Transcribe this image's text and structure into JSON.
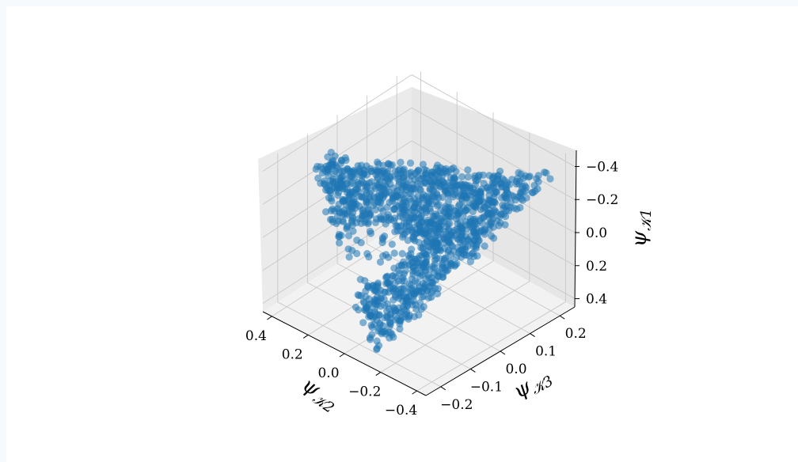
{
  "chart_data": {
    "type": "scatter",
    "projection": "3d",
    "title": "",
    "grid": true,
    "marker_color": "#1f77b4",
    "marker_alpha": 0.55,
    "axes": {
      "x": {
        "label": "ψ𝒦2",
        "label_main": "ψ",
        "label_sub": "𝒦2",
        "range": [
          -0.45,
          0.45
        ],
        "ticks": [
          0.4,
          0.2,
          0.0,
          -0.2,
          -0.4
        ],
        "tick_labels": [
          "0.4",
          "0.2",
          "0.0",
          "−0.2",
          "−0.4"
        ]
      },
      "y": {
        "label": "ψ𝒦3",
        "label_main": "ψ",
        "label_sub": "𝒦3",
        "range": [
          -0.25,
          0.25
        ],
        "ticks": [
          -0.2,
          -0.1,
          0.0,
          0.1,
          0.2
        ],
        "tick_labels": [
          "−0.2",
          "−0.1",
          "0.0",
          "0.1",
          "0.2"
        ]
      },
      "z": {
        "label": "ψ𝒦1",
        "label_main": "ψ",
        "label_sub": "𝒦1",
        "range": [
          -0.45,
          0.45
        ],
        "ticks": [
          -0.4,
          -0.2,
          0.0,
          0.2,
          0.4
        ],
        "tick_labels": [
          "−0.4",
          "−0.2",
          "0.0",
          "0.2",
          "0.4"
        ],
        "inverted": true
      }
    },
    "point_count": 1600,
    "hole_center": [
      0.08,
      0.02,
      0.05
    ],
    "hole_radius": 0.12,
    "description_shape": "dense triangular cloud with interior hole"
  }
}
